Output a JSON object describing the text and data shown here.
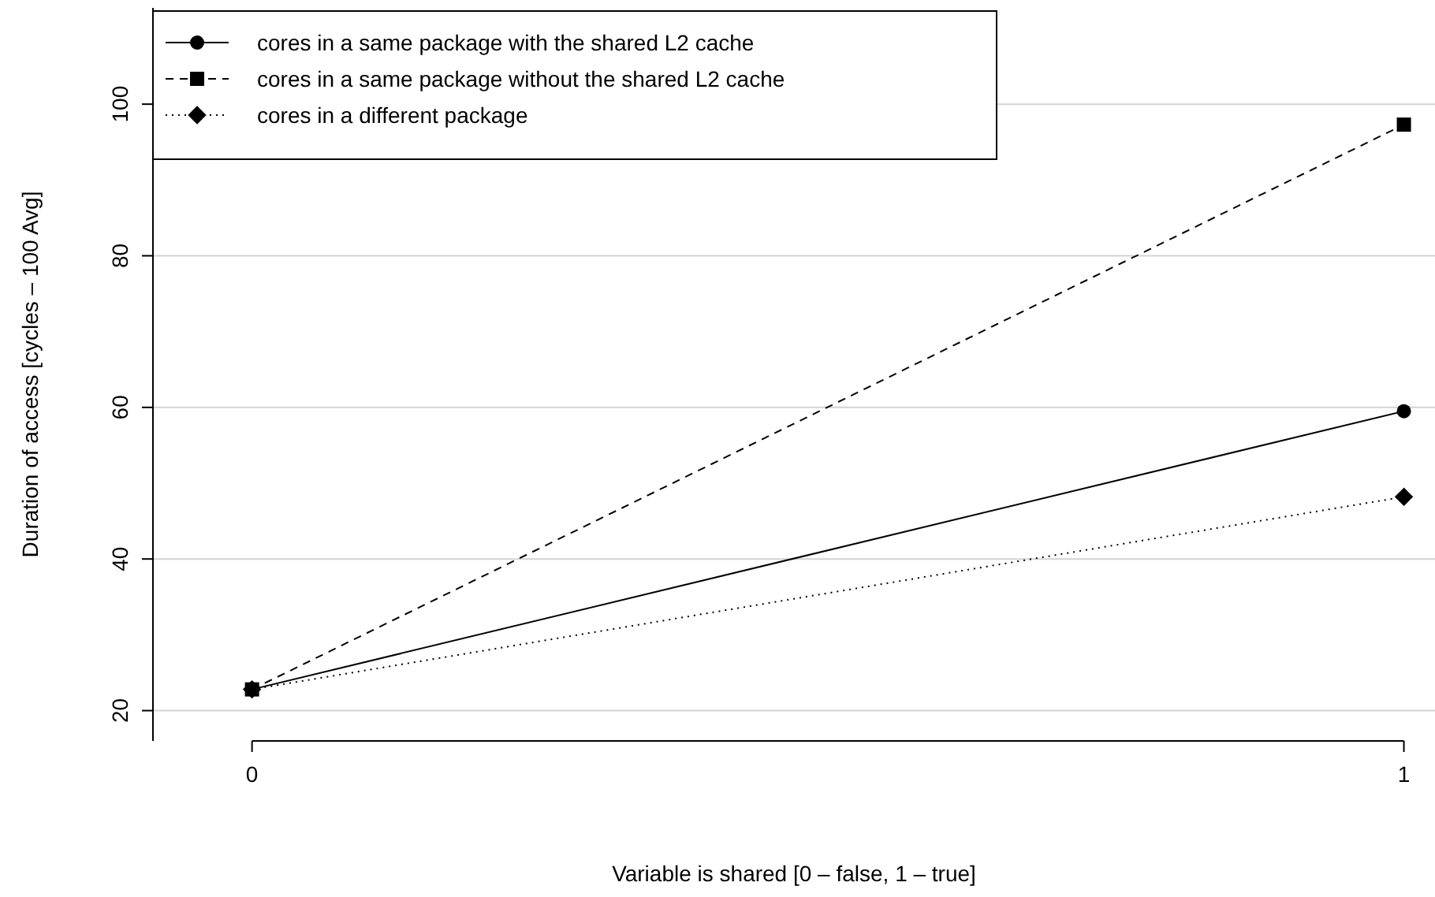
{
  "chart_data": {
    "type": "line",
    "xlabel": "Variable is shared [0 – false, 1 – true]",
    "ylabel": "Duration of access [cycles – 100 Avg]",
    "x": [
      0,
      1
    ],
    "xlim": [
      -0.086,
      1.027
    ],
    "xticks": [
      0,
      1
    ],
    "ylim": [
      16,
      112.7
    ],
    "yticks": [
      20,
      40,
      60,
      80,
      100
    ],
    "grid": "y",
    "legend": "top left",
    "series": [
      {
        "name": "cores in a same package with the shared L2 cache",
        "color": "#000000",
        "values": [
          22.8,
          59.5
        ],
        "marker": "circle",
        "line_style": "solid"
      },
      {
        "name": "cores in a same package without the shared L2 cache",
        "color": "#000000",
        "values": [
          22.8,
          97.3
        ],
        "marker": "square",
        "line_style": "dashed"
      },
      {
        "name": "cores in a different package",
        "color": "#000000",
        "values": [
          22.8,
          48.2
        ],
        "marker": "diamond",
        "line_style": "dotted"
      }
    ]
  }
}
